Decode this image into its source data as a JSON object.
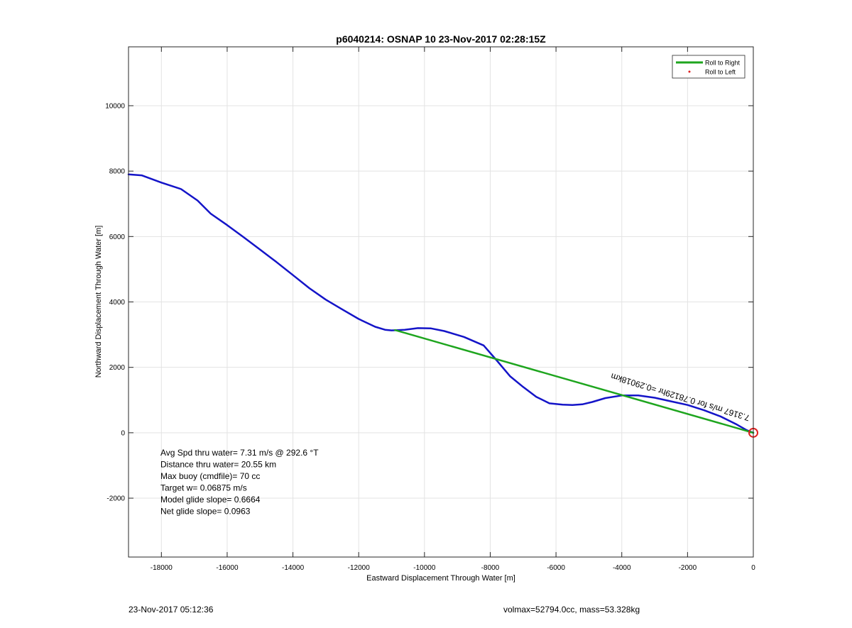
{
  "chart_data": {
    "type": "line",
    "title": "p6040214: OSNAP 10 23-Nov-2017 02:28:15Z",
    "xlabel": "Eastward Displacement Through Water [m]",
    "ylabel": "Northward Displacement Through Water [m]",
    "xlim": [
      -19000,
      0
    ],
    "ylim": [
      -3800,
      11800
    ],
    "x_ticks": [
      -18000,
      -16000,
      -14000,
      -12000,
      -10000,
      -8000,
      -6000,
      -4000,
      -2000,
      0
    ],
    "y_ticks": [
      -2000,
      0,
      2000,
      4000,
      6000,
      8000,
      10000
    ],
    "x_tick_labels": [
      "-18000",
      "-16000",
      "-14000",
      "-12000",
      "-10000",
      "-8000",
      "-6000",
      "-4000",
      "-2000",
      "0"
    ],
    "y_tick_labels": [
      "-2000",
      "0",
      "2000",
      "4000",
      "6000",
      "8000",
      "10000"
    ],
    "grid": true,
    "legend_position": "top-right",
    "legend": [
      {
        "label": "Roll to Right",
        "color": "#1ea51e",
        "marker": "line"
      },
      {
        "label": "Roll to Left",
        "color": "#e02020",
        "marker": "dot"
      }
    ],
    "series": [
      {
        "color": "#1414c8",
        "x": [
          -19000,
          -18600,
          -18000,
          -17400,
          -16900,
          -16500,
          -16000,
          -15500,
          -15000,
          -14500,
          -14000,
          -13500,
          -13000,
          -12500,
          -12000,
          -11500,
          -11200,
          -11000,
          -10600,
          -10200,
          -9800,
          -9400,
          -8800,
          -8200,
          -7800,
          -7400,
          -7000,
          -6600,
          -6200,
          -5800,
          -5500,
          -5200,
          -4900,
          -4500,
          -4000,
          -3500,
          -3000,
          -2500,
          -2000,
          -1500,
          -1000,
          -500,
          -200,
          0
        ],
        "y": [
          7900,
          7870,
          7650,
          7450,
          7100,
          6700,
          6350,
          5980,
          5600,
          5220,
          4820,
          4420,
          4070,
          3770,
          3480,
          3240,
          3150,
          3130,
          3150,
          3200,
          3190,
          3110,
          2930,
          2670,
          2210,
          1730,
          1400,
          1100,
          900,
          860,
          850,
          870,
          940,
          1060,
          1140,
          1140,
          1070,
          960,
          850,
          690,
          500,
          250,
          80,
          0
        ]
      },
      {
        "color": "#1ea51e",
        "x": [
          -10900,
          0
        ],
        "y": [
          3140,
          0
        ]
      }
    ],
    "annotations": [
      {
        "text": "Avg Spd thru water=  7.31 m/s @ 292.6 °T"
      },
      {
        "text": "Distance thru water= 20.55 km"
      },
      {
        "text": "Max buoy (cmdfile)= 70 cc"
      },
      {
        "text": "Target w= 0.06875 m/s"
      },
      {
        "text": "Model glide slope= 0.6664"
      },
      {
        "text": "Net glide slope= 0.0963"
      }
    ],
    "rotated_label": {
      "text": "7.3167 m/s for 0.78129hr =0.29018km",
      "x": -4300,
      "y": 1820,
      "angle_deg": 17
    },
    "end_marker": {
      "x": 0,
      "y": 0,
      "color": "#e02020"
    }
  },
  "footer": {
    "left": "23-Nov-2017 05:12:36",
    "right": "volmax=52794.0cc, mass=53.328kg"
  }
}
